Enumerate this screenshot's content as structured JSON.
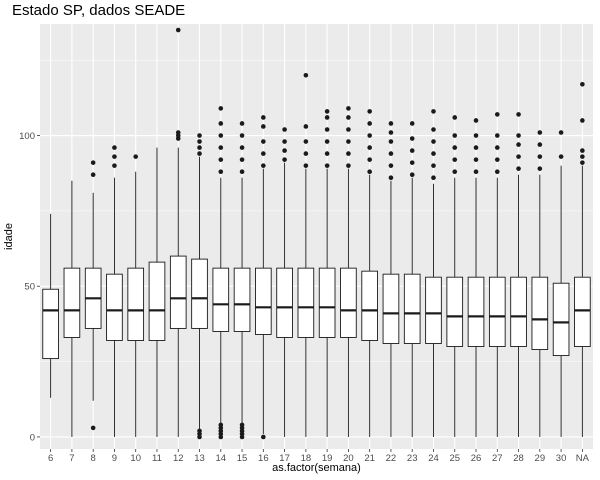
{
  "chart_data": {
    "type": "boxplot",
    "title": "Estado SP, dados SEADE",
    "xlabel": "as.factor(semana)",
    "ylabel": "idade",
    "ylim": [
      -4,
      137
    ],
    "yticks": [
      0,
      50,
      100
    ],
    "grid": true,
    "theme": "ggplot2 grey",
    "colors": {
      "panel_bg": "#ebebeb",
      "grid": "#ffffff",
      "box_fill": "#ffffff",
      "line": "#1a1a1a"
    },
    "categories": [
      "6",
      "7",
      "8",
      "9",
      "10",
      "11",
      "12",
      "13",
      "14",
      "15",
      "16",
      "17",
      "18",
      "19",
      "20",
      "21",
      "22",
      "23",
      "24",
      "25",
      "26",
      "27",
      "28",
      "29",
      "30",
      "NA"
    ],
    "boxes": [
      {
        "min": 13,
        "q1": 26,
        "median": 42,
        "q3": 49,
        "max": 74,
        "outliers": []
      },
      {
        "min": 0,
        "q1": 33,
        "median": 42,
        "q3": 56,
        "max": 85,
        "outliers": []
      },
      {
        "min": 12,
        "q1": 36,
        "median": 46,
        "q3": 56,
        "max": 81,
        "outliers": [
          3,
          87,
          91
        ]
      },
      {
        "min": 0,
        "q1": 32,
        "median": 42,
        "q3": 54,
        "max": 86,
        "outliers": [
          90,
          93,
          96
        ]
      },
      {
        "min": 0,
        "q1": 32,
        "median": 42,
        "q3": 56,
        "max": 88,
        "outliers": [
          93
        ]
      },
      {
        "min": 0,
        "q1": 32,
        "median": 42,
        "q3": 58,
        "max": 96,
        "outliers": []
      },
      {
        "min": 0,
        "q1": 36,
        "median": 46,
        "q3": 60,
        "max": 96,
        "outliers": [
          99,
          100,
          101,
          135
        ]
      },
      {
        "min": 2,
        "q1": 36,
        "median": 46,
        "q3": 59,
        "max": 93,
        "outliers": [
          0,
          1,
          2,
          94,
          96,
          98,
          100
        ]
      },
      {
        "min": 4,
        "q1": 35,
        "median": 44,
        "q3": 56,
        "max": 86,
        "outliers": [
          0,
          1,
          2,
          3,
          4,
          88,
          92,
          96,
          100,
          104,
          109
        ]
      },
      {
        "min": 4,
        "q1": 35,
        "median": 44,
        "q3": 56,
        "max": 86,
        "outliers": [
          0,
          1,
          2,
          3,
          4,
          88,
          92,
          96,
          100,
          104
        ]
      },
      {
        "min": 1,
        "q1": 34,
        "median": 43,
        "q3": 56,
        "max": 89,
        "outliers": [
          0,
          90,
          94,
          98,
          103,
          106
        ]
      },
      {
        "min": 0,
        "q1": 33,
        "median": 43,
        "q3": 56,
        "max": 91,
        "outliers": [
          92,
          95,
          98,
          102
        ]
      },
      {
        "min": 0,
        "q1": 33,
        "median": 43,
        "q3": 56,
        "max": 89,
        "outliers": [
          90,
          94,
          98,
          103,
          120
        ]
      },
      {
        "min": 0,
        "q1": 33,
        "median": 43,
        "q3": 56,
        "max": 89,
        "outliers": [
          90,
          94,
          98,
          102,
          106,
          108
        ]
      },
      {
        "min": 0,
        "q1": 33,
        "median": 42,
        "q3": 56,
        "max": 89,
        "outliers": [
          90,
          94,
          98,
          102,
          106,
          109
        ]
      },
      {
        "min": 0,
        "q1": 32,
        "median": 42,
        "q3": 55,
        "max": 87,
        "outliers": [
          88,
          92,
          96,
          100,
          104,
          108
        ]
      },
      {
        "min": 0,
        "q1": 31,
        "median": 41,
        "q3": 54,
        "max": 85,
        "outliers": [
          86,
          90,
          94,
          98,
          101,
          104
        ]
      },
      {
        "min": 0,
        "q1": 31,
        "median": 41,
        "q3": 54,
        "max": 86,
        "outliers": [
          87,
          91,
          95,
          99,
          104
        ]
      },
      {
        "min": 0,
        "q1": 31,
        "median": 41,
        "q3": 53,
        "max": 84,
        "outliers": [
          86,
          90,
          94,
          98,
          102,
          108
        ]
      },
      {
        "min": 0,
        "q1": 30,
        "median": 40,
        "q3": 53,
        "max": 86,
        "outliers": [
          88,
          92,
          96,
          100,
          106
        ]
      },
      {
        "min": 0,
        "q1": 30,
        "median": 40,
        "q3": 53,
        "max": 86,
        "outliers": [
          88,
          92,
          96,
          100,
          105
        ]
      },
      {
        "min": 0,
        "q1": 30,
        "median": 40,
        "q3": 53,
        "max": 86,
        "outliers": [
          88,
          92,
          96,
          100,
          107
        ]
      },
      {
        "min": 0,
        "q1": 30,
        "median": 40,
        "q3": 53,
        "max": 87,
        "outliers": [
          89,
          93,
          97,
          100,
          107
        ]
      },
      {
        "min": 0,
        "q1": 29,
        "median": 39,
        "q3": 53,
        "max": 87,
        "outliers": [
          89,
          93,
          97,
          101
        ]
      },
      {
        "min": 0,
        "q1": 27,
        "median": 38,
        "q3": 51,
        "max": 90,
        "outliers": [
          93,
          101
        ]
      },
      {
        "min": 0,
        "q1": 30,
        "median": 42,
        "q3": 53,
        "max": 90,
        "outliers": [
          91,
          93,
          95,
          105,
          117
        ]
      }
    ]
  }
}
